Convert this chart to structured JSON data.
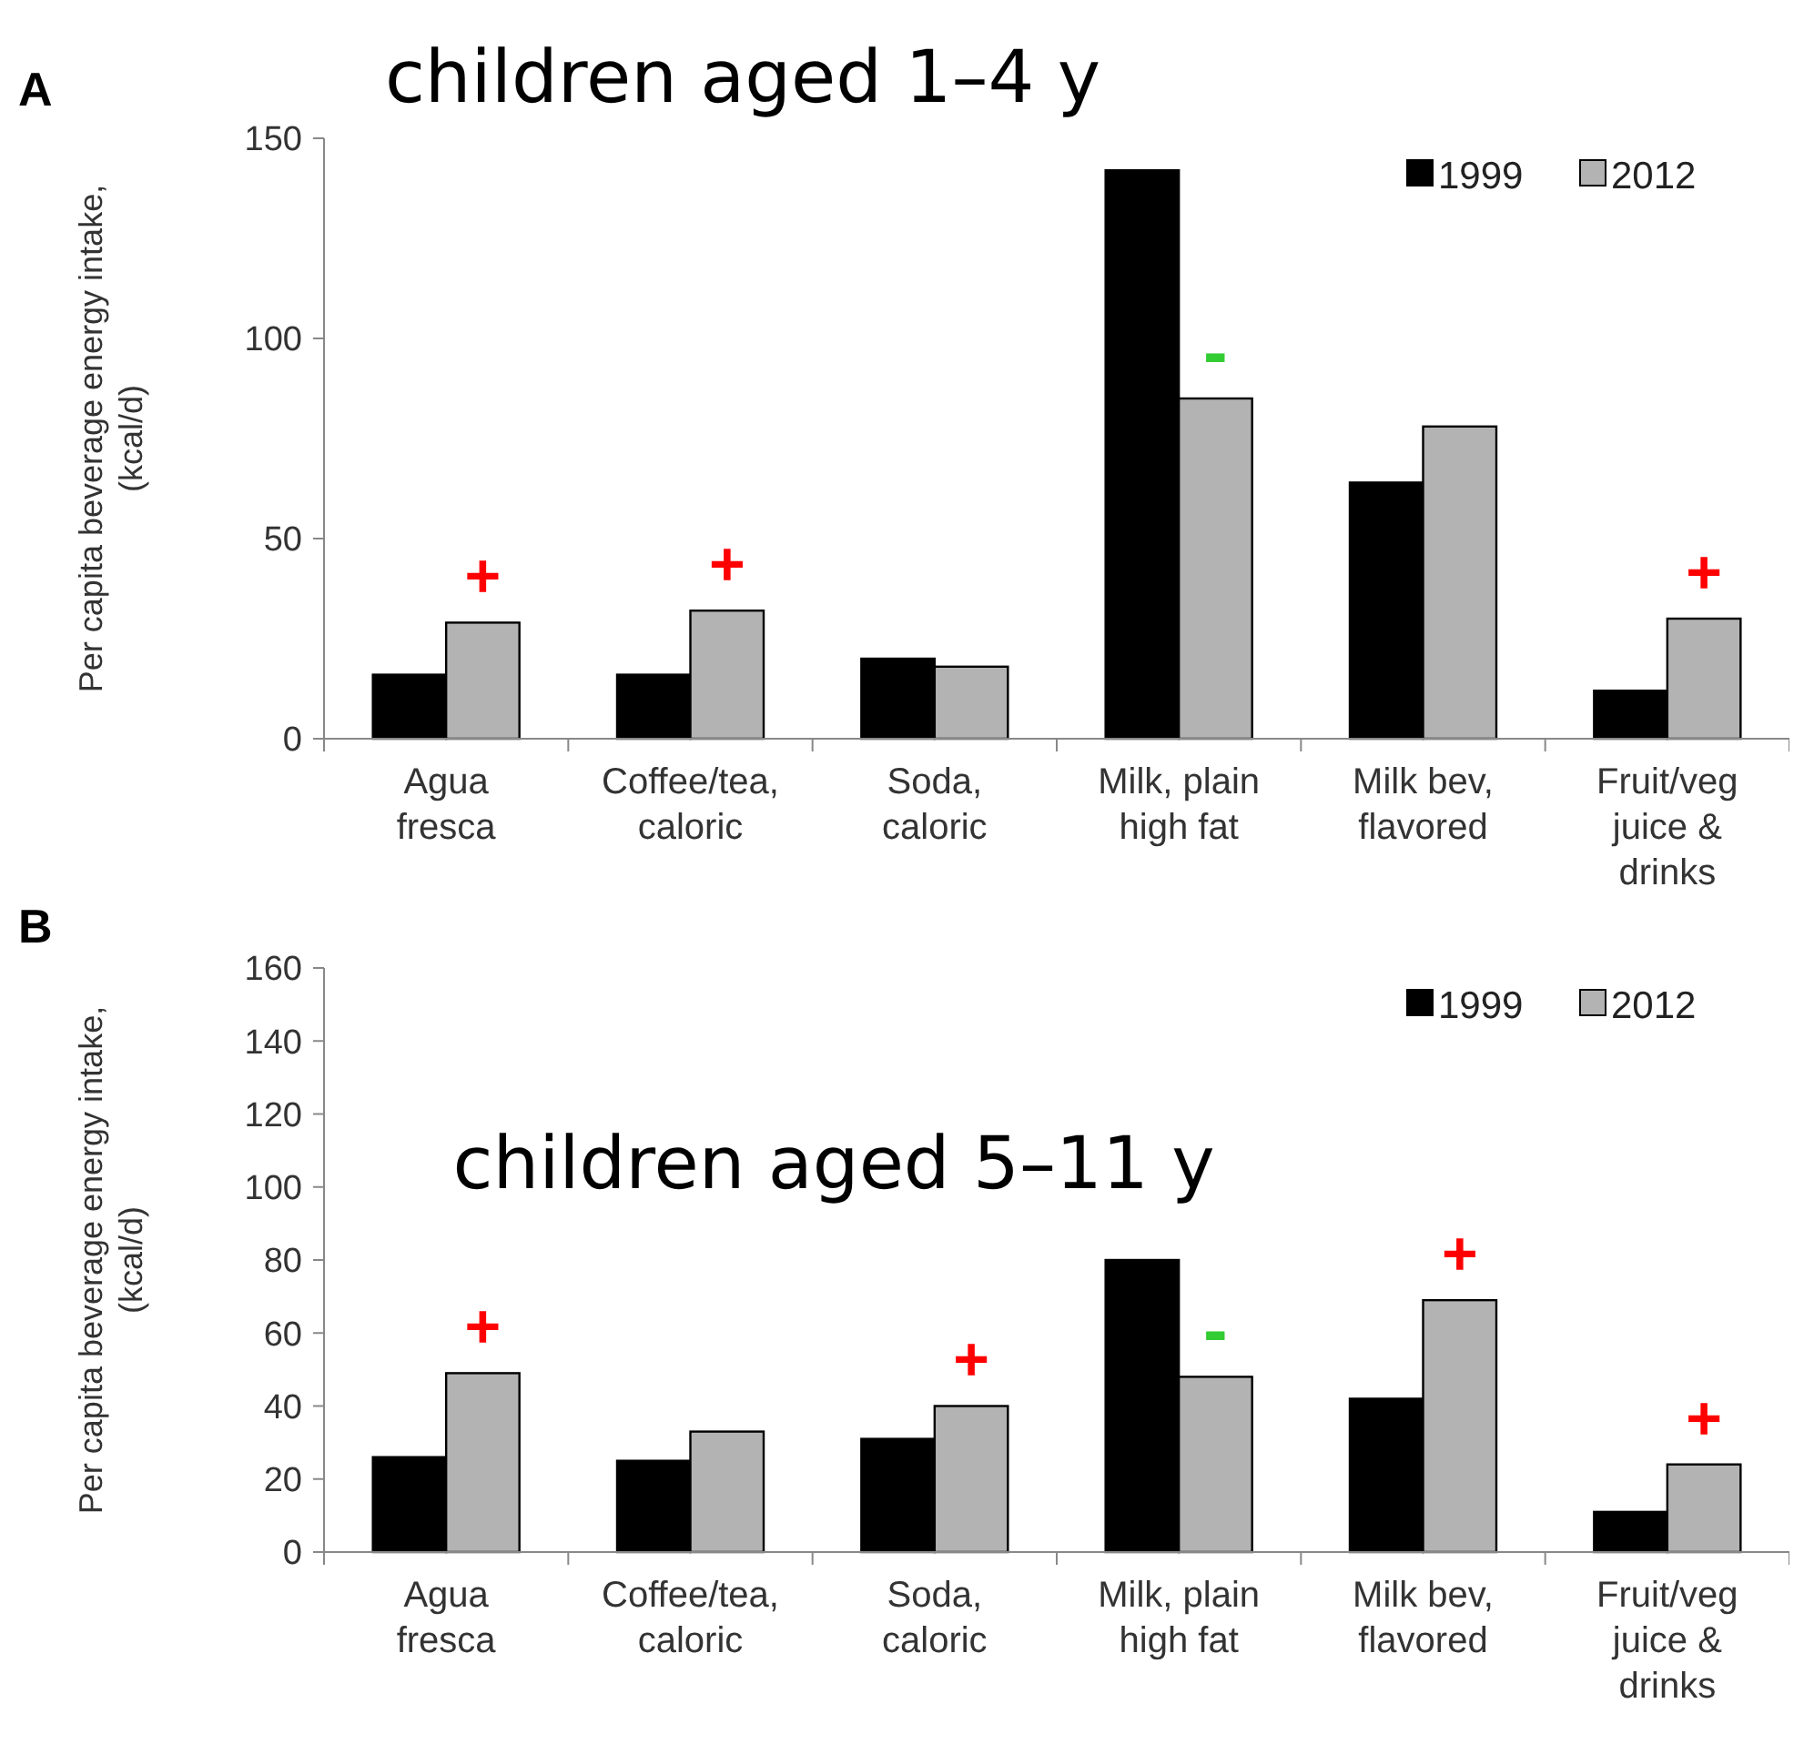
{
  "chart_data": [
    {
      "type": "bar",
      "title": "children aged 1–4 y",
      "ylabel": "Per capita beverage energy intake,\n(kcal/d)",
      "categories": [
        "Agua\nfresca",
        "Coffee/tea,\ncaloric",
        "Soda,\ncaloric",
        "Milk, plain\nhigh fat",
        "Milk bev,\nflavored",
        "Fruit/veg\njuice &\ndrinks"
      ],
      "series": [
        {
          "name": "1999",
          "color": "#000000",
          "values": [
            16,
            16,
            20,
            142,
            64,
            12
          ]
        },
        {
          "name": "2012",
          "color": "#b3b3b3",
          "values": [
            29,
            32,
            18,
            85,
            78,
            30
          ]
        }
      ],
      "ylim": [
        0,
        150
      ],
      "yticks": [
        0,
        50,
        100,
        150
      ],
      "grid": false,
      "legend": "top right",
      "annotations": [
        "A",
        {
          "text": "+",
          "x": "Agua\nfresca",
          "y": 29
        },
        {
          "text": "+",
          "x": "Coffee/tea,\ncaloric",
          "y": 32
        },
        {
          "text": "-",
          "x": "Milk, plain\nhigh fat",
          "y": 85
        },
        {
          "text": "+",
          "x": "Fruit/veg\njuice &\ndrinks",
          "y": 30
        }
      ]
    },
    {
      "type": "bar",
      "title": "children aged 5–11 y",
      "ylabel": "Per capita beverage energy intake,\n(kcal/d)",
      "categories": [
        "Agua\nfresca",
        "Coffee/tea,\ncaloric",
        "Soda,\ncaloric",
        "Milk, plain\nhigh fat",
        "Milk bev,\nflavored",
        "Fruit/veg\njuice &\ndrinks"
      ],
      "series": [
        {
          "name": "1999",
          "color": "#000000",
          "values": [
            26,
            25,
            31,
            80,
            42,
            11
          ]
        },
        {
          "name": "2012",
          "color": "#b3b3b3",
          "values": [
            49,
            33,
            40,
            48,
            69,
            24
          ]
        }
      ],
      "ylim": [
        0,
        160
      ],
      "yticks": [
        0,
        20,
        40,
        60,
        80,
        100,
        120,
        140,
        160
      ],
      "grid": false,
      "legend": "top right",
      "annotations": [
        "B",
        {
          "text": "+",
          "x": "Agua\nfresca",
          "y": 49
        },
        {
          "text": "-",
          "x": "Milk, plain\nhigh fat",
          "y": 48
        },
        {
          "text": "+",
          "x": "Soda,\ncaloric",
          "y": 40
        },
        {
          "text": "+",
          "x": "Milk bev,\nflavored",
          "y": 69
        },
        {
          "text": "+",
          "x": "Fruit/veg\njuice &\ndrinks",
          "y": 24
        }
      ]
    }
  ]
}
